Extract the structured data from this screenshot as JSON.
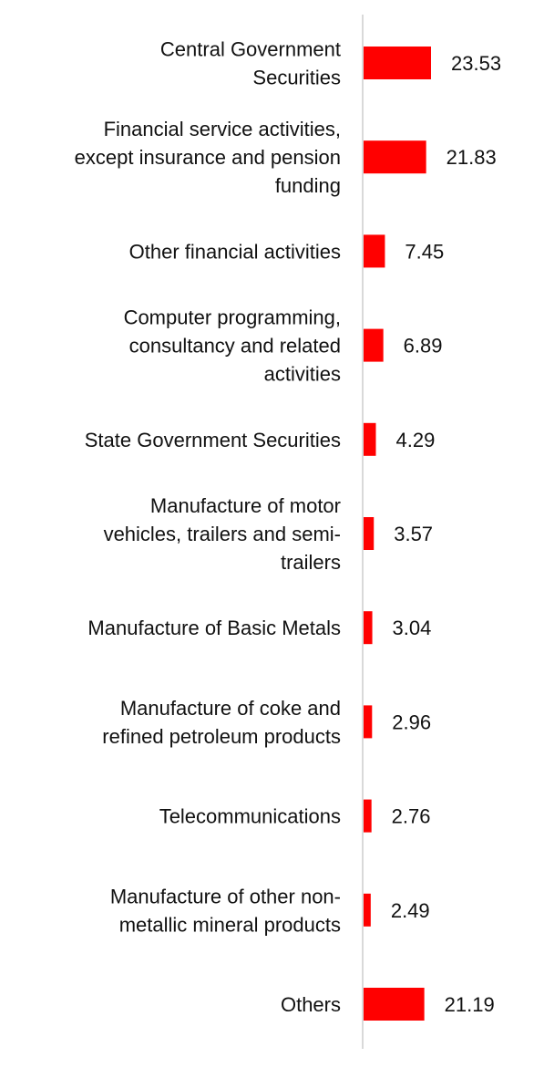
{
  "chart_data": {
    "type": "bar",
    "orientation": "horizontal",
    "categories": [
      "Central Government Securities",
      "Financial service activities, except insurance and pension funding",
      "Other financial activities",
      "Computer programming, consultancy and related activities",
      "State Government Securities",
      "Manufacture of motor vehicles, trailers and semi-trailers",
      "Manufacture of Basic Metals",
      "Manufacture of coke and refined petroleum products",
      "Telecommunications",
      "Manufacture of other non-metallic mineral products",
      "Others"
    ],
    "category_lines": [
      [
        "Central Government",
        "Securities"
      ],
      [
        "Financial service activities,",
        "except insurance and pension",
        "funding"
      ],
      [
        "Other financial activities"
      ],
      [
        "Computer programming,",
        "consultancy and related",
        "activities"
      ],
      [
        "State Government Securities"
      ],
      [
        "Manufacture of motor",
        "vehicles, trailers and semi-",
        "trailers"
      ],
      [
        "Manufacture of Basic Metals"
      ],
      [
        "Manufacture of coke and",
        "refined petroleum products"
      ],
      [
        "Telecommunications"
      ],
      [
        "Manufacture of other non-",
        "metallic mineral products"
      ],
      [
        "Others"
      ]
    ],
    "values": [
      23.53,
      21.83,
      7.45,
      6.89,
      4.29,
      3.57,
      3.04,
      2.96,
      2.76,
      2.49,
      21.19
    ],
    "value_labels": [
      "23.53",
      "21.83",
      "7.45",
      "6.89",
      "4.29",
      "3.57",
      "3.04",
      "2.96",
      "2.76",
      "2.49",
      "21.19"
    ],
    "xlim": [
      0,
      100
    ],
    "grid": false,
    "legend": "none",
    "bar_color": "#ff0000",
    "axis_color": "#d9d9d9",
    "text_color": "#111111"
  }
}
